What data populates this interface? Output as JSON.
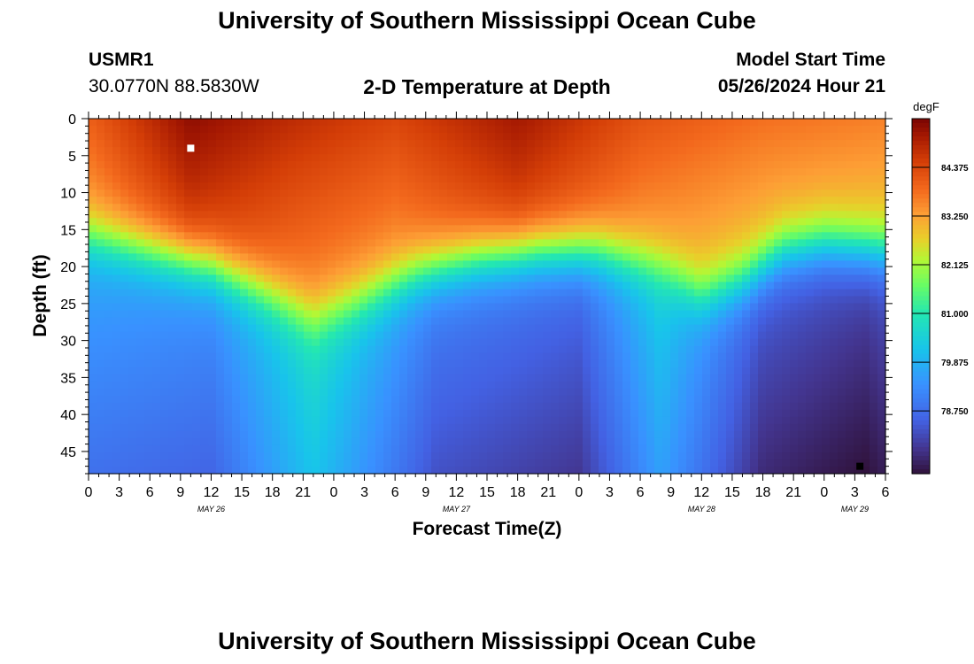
{
  "header": {
    "title_top": "University of Southern Mississippi Ocean Cube",
    "title_bottom": "University of Southern Mississippi Ocean Cube",
    "station_id": "USMR1",
    "station_coords": "30.0770N  88.5830W",
    "plot_title": "2-D Temperature at Depth",
    "model_start_label": "Model Start Time",
    "model_start_value": "05/26/2024 Hour 21"
  },
  "chart_data": {
    "type": "heatmap",
    "title": "2-D Temperature at Depth",
    "xlabel": "Forecast Time(Z)",
    "ylabel": "Depth (ft)",
    "x_tick_labels": [
      "0",
      "3",
      "6",
      "9",
      "12",
      "15",
      "18",
      "21",
      "0",
      "3",
      "6",
      "9",
      "12",
      "15",
      "18",
      "21",
      "0",
      "3",
      "6",
      "9",
      "12",
      "15",
      "18",
      "21",
      "0",
      "3",
      "6"
    ],
    "x_range_hours": [
      0,
      78
    ],
    "date_labels": [
      {
        "label": "MAY 26",
        "hour": 12
      },
      {
        "label": "MAY 27",
        "hour": 36
      },
      {
        "label": "MAY 28",
        "hour": 60
      },
      {
        "label": "MAY 29",
        "hour": 75
      }
    ],
    "y_ticks": [
      0,
      5,
      10,
      15,
      20,
      25,
      30,
      35,
      40,
      45
    ],
    "y_range_ft": [
      0,
      48
    ],
    "colorbar": {
      "unit": "degF",
      "range": [
        77.3,
        85.5
      ],
      "tick_values": [
        84.375,
        83.25,
        82.125,
        81.0,
        79.875,
        78.75
      ],
      "tick_labels": [
        "84.375",
        "83.250",
        "82.125",
        "81.000",
        "79.875",
        "78.750"
      ]
    },
    "thermocline_depth_ft": [
      {
        "hour": 0,
        "depth": 16
      },
      {
        "hour": 6,
        "depth": 18
      },
      {
        "hour": 12,
        "depth": 20
      },
      {
        "hour": 18,
        "depth": 24
      },
      {
        "hour": 22,
        "depth": 27
      },
      {
        "hour": 26,
        "depth": 25
      },
      {
        "hour": 32,
        "depth": 21
      },
      {
        "hour": 38,
        "depth": 19
      },
      {
        "hour": 44,
        "depth": 18
      },
      {
        "hour": 50,
        "depth": 18
      },
      {
        "hour": 56,
        "depth": 20
      },
      {
        "hour": 60,
        "depth": 24
      },
      {
        "hour": 64,
        "depth": 22
      },
      {
        "hour": 68,
        "depth": 18
      },
      {
        "hour": 72,
        "depth": 17
      },
      {
        "hour": 78,
        "depth": 18
      }
    ],
    "surface_temp_degF": [
      {
        "hour": 0,
        "temp": 84.0
      },
      {
        "hour": 10,
        "temp": 85.3
      },
      {
        "hour": 20,
        "temp": 84.8
      },
      {
        "hour": 30,
        "temp": 84.4
      },
      {
        "hour": 42,
        "temp": 85.1
      },
      {
        "hour": 54,
        "temp": 84.2
      },
      {
        "hour": 66,
        "temp": 83.8
      },
      {
        "hour": 78,
        "temp": 83.6
      }
    ],
    "bottom_temp_degF": [
      {
        "hour": 0,
        "temp": 78.8
      },
      {
        "hour": 12,
        "temp": 78.6
      },
      {
        "hour": 22,
        "temp": 80.2
      },
      {
        "hour": 34,
        "temp": 78.3
      },
      {
        "hour": 48,
        "temp": 77.9
      },
      {
        "hour": 56,
        "temp": 79.6
      },
      {
        "hour": 66,
        "temp": 77.7
      },
      {
        "hour": 76,
        "temp": 77.3
      },
      {
        "hour": 78,
        "temp": 77.5
      }
    ],
    "markers": [
      {
        "type": "max",
        "hour": 10,
        "depth_ft": 4
      },
      {
        "type": "min",
        "hour": 75.5,
        "depth_ft": 47
      }
    ]
  }
}
